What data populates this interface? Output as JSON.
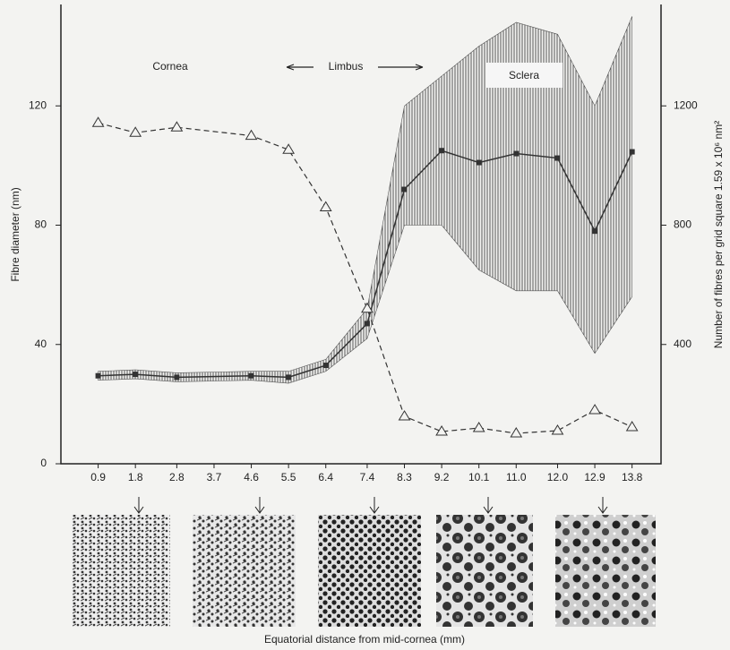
{
  "chart_data": {
    "type": "line",
    "y_label": "Fibre diameter (nm)",
    "y2_label": "Number of fibres per grid square 1.59 x 10⁶ nm²",
    "x_label": "Equatorial distance from mid-cornea (mm)",
    "annotations": [
      "Cornea",
      "Limbus",
      "Sclera"
    ],
    "xlim": [
      0,
      14.5
    ],
    "xticks": [
      0.9,
      1.8,
      2.8,
      3.7,
      4.6,
      5.5,
      6.4,
      7.4,
      8.3,
      9.2,
      10.1,
      {
        "value": 11,
        "label": "11.0"
      },
      {
        "value": 12,
        "label": "12.0"
      },
      12.9,
      13.8
    ],
    "ylim": [
      0,
      154
    ],
    "yticks": [
      0,
      40,
      80,
      120
    ],
    "y2lim": [
      0,
      1540
    ],
    "y2ticks": [
      400,
      800,
      1200
    ],
    "series": [
      {
        "color": "#333333",
        "marker": "square",
        "x": [
          0.9,
          1.8,
          2.8,
          4.6,
          5.5,
          6.4,
          7.4,
          8.3,
          9.2,
          10.1,
          11,
          12,
          12.9,
          13.8
        ],
        "values": [
          29.5,
          30,
          29,
          29.5,
          29,
          33,
          47,
          92,
          105,
          101,
          104,
          102.5,
          78,
          104.6
        ],
        "low": [
          28,
          28.5,
          27.5,
          28,
          27,
          31,
          42,
          80,
          80,
          65,
          58,
          58,
          37,
          56
        ],
        "high": [
          31,
          31.5,
          30.5,
          31,
          31,
          35,
          52,
          120,
          130,
          140,
          148,
          144,
          120,
          150
        ]
      },
      {
        "color": "#333333",
        "marker": "triangle",
        "axis": "y2",
        "dashed": true,
        "x": [
          0.9,
          1.8,
          2.8,
          4.6,
          5.5,
          6.4,
          7.4,
          8.3,
          9.2,
          10.1,
          11,
          12,
          12.9,
          13.8
        ],
        "values": [
          1143,
          1110,
          1128,
          1100,
          1053,
          860,
          520,
          159,
          108,
          120,
          102,
          111,
          180,
          123
        ]
      }
    ]
  }
}
